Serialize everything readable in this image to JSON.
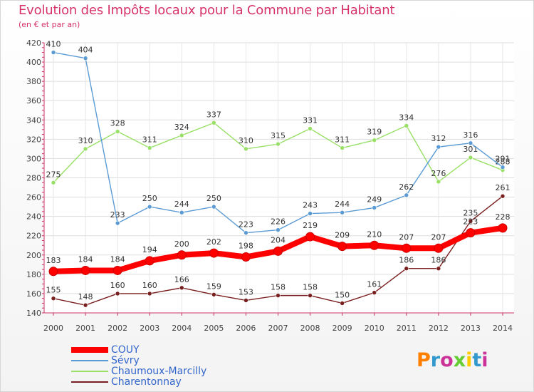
{
  "header": {
    "title": "Evolution des Impôts locaux pour la Commune par Habitant",
    "subtitle": "(en € et par an)"
  },
  "logo": {
    "text": "Proxiti",
    "letter_colors": [
      "#ff7f00",
      "#3399cc",
      "#cc3399",
      "#66cc33",
      "#ffcc00",
      "#3399cc",
      "#cc3399"
    ]
  },
  "chart_data": {
    "type": "line",
    "x": [
      2000,
      2001,
      2002,
      2003,
      2004,
      2005,
      2006,
      2007,
      2008,
      2009,
      2010,
      2011,
      2012,
      2013,
      2014
    ],
    "ylim": [
      140,
      420
    ],
    "yticks": [
      140,
      160,
      180,
      200,
      220,
      240,
      260,
      280,
      300,
      320,
      340,
      360,
      380,
      400,
      420
    ],
    "grid": true,
    "legend_position": "bottom-left",
    "series": [
      {
        "name": "Charentonnay",
        "color": "#7a1f1f",
        "values": [
          155,
          148,
          160,
          160,
          166,
          159,
          153,
          158,
          158,
          150,
          161,
          186,
          186,
          235,
          261
        ]
      },
      {
        "name": "Chaumoux-Marcilly",
        "color": "#99e066",
        "values": [
          275,
          310,
          328,
          311,
          324,
          337,
          310,
          315,
          331,
          311,
          319,
          334,
          276,
          301,
          288
        ]
      },
      {
        "name": "Sévry",
        "color": "#5b9bd5",
        "values": [
          410,
          404,
          233,
          250,
          244,
          250,
          223,
          226,
          243,
          244,
          249,
          262,
          312,
          316,
          291
        ]
      },
      {
        "name": "COUY",
        "color": "#ff0000",
        "values": [
          183,
          184,
          184,
          194,
          200,
          202,
          198,
          204,
          219,
          209,
          210,
          207,
          207,
          223,
          228
        ]
      }
    ]
  },
  "legend": {
    "items": [
      {
        "label": "COUY",
        "color": "#ff0000"
      },
      {
        "label": "Sévry",
        "color": "#5b9bd5"
      },
      {
        "label": "Chaumoux-Marcilly",
        "color": "#99e066"
      },
      {
        "label": "Charentonnay",
        "color": "#7a1f1f"
      }
    ]
  }
}
